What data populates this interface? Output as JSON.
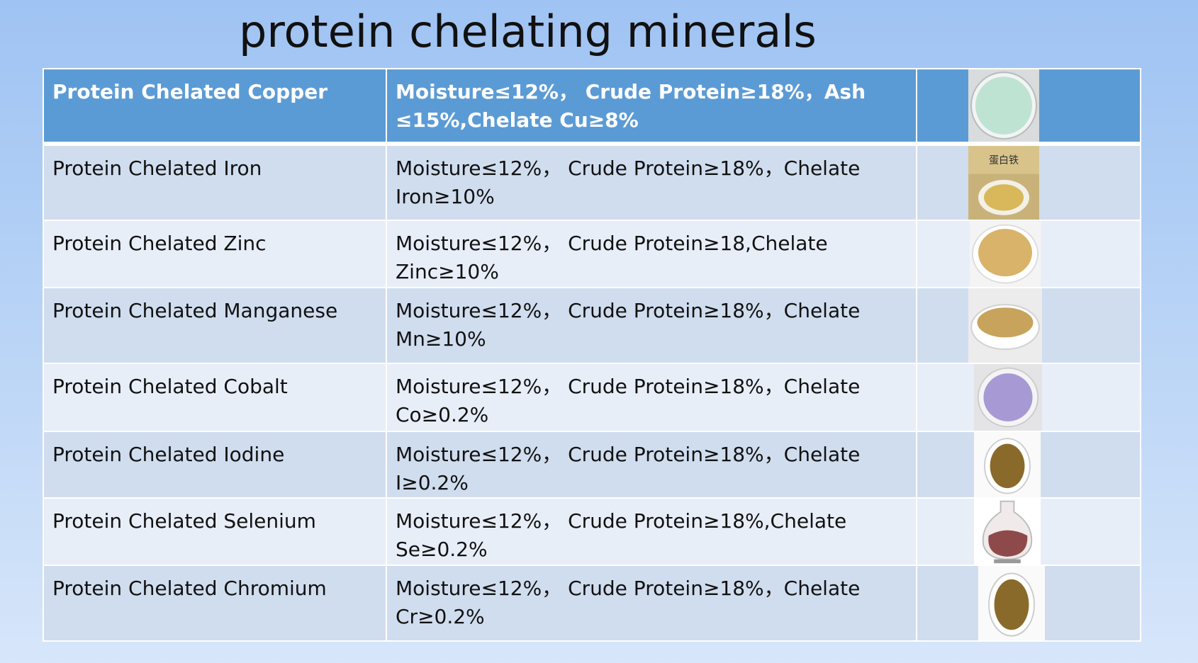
{
  "slide": {
    "title": "protein chelating minerals"
  },
  "table": {
    "rows": [
      {
        "name": "Protein Chelated Copper",
        "spec_line1": "Moisture≤12%，  Crude Protein≥18%，Ash",
        "spec_line2": "≤15%,Chelate Cu≥8%",
        "image": "green-powder-dish",
        "image_color": "#bfe3d3"
      },
      {
        "name": "Protein Chelated Iron",
        "spec_line1": "Moisture≤12%，  Crude Protein≥18%，Chelate",
        "spec_line2": "Iron≥10%",
        "image": "yellow-powder-bag",
        "image_color": "#d8b85a",
        "image_label": "蛋白铁"
      },
      {
        "name": "Protein Chelated Zinc",
        "spec_line1": "Moisture≤12%，  Crude Protein≥18,Chelate",
        "spec_line2": "Zinc≥10%",
        "image": "tan-powder-dish",
        "image_color": "#d9b36a"
      },
      {
        "name": "Protein Chelated Manganese",
        "spec_line1": "Moisture≤12%，  Crude Protein≥18%，Chelate",
        "spec_line2": "Mn≥10%",
        "image": "tan-powder-bowl",
        "image_color": "#c8a35c"
      },
      {
        "name": "Protein Chelated Cobalt",
        "spec_line1": "Moisture≤12%，  Crude Protein≥18%，Chelate",
        "spec_line2": "Co≥0.2%",
        "image": "purple-powder-bowl",
        "image_color": "#a79ad4"
      },
      {
        "name": "Protein Chelated Iodine",
        "spec_line1": "Moisture≤12%，  Crude Protein≥18%，Chelate",
        "spec_line2": "I≥0.2%",
        "image": "brown-powder-scoop",
        "image_color": "#8a6a2a"
      },
      {
        "name": "Protein Chelated Selenium",
        "spec_line1": "Moisture≤12%，  Crude Protein≥18%,Chelate",
        "spec_line2": "Se≥0.2%",
        "image": "red-powder-flask",
        "image_color": "#8e4a4a"
      },
      {
        "name": "Protein Chelated Chromium",
        "spec_line1": "Moisture≤12%，  Crude Protein≥18%，Chelate",
        "spec_line2": "Cr≥0.2%",
        "image": "brown-powder-scoop",
        "image_color": "#8a6a2a"
      }
    ]
  }
}
